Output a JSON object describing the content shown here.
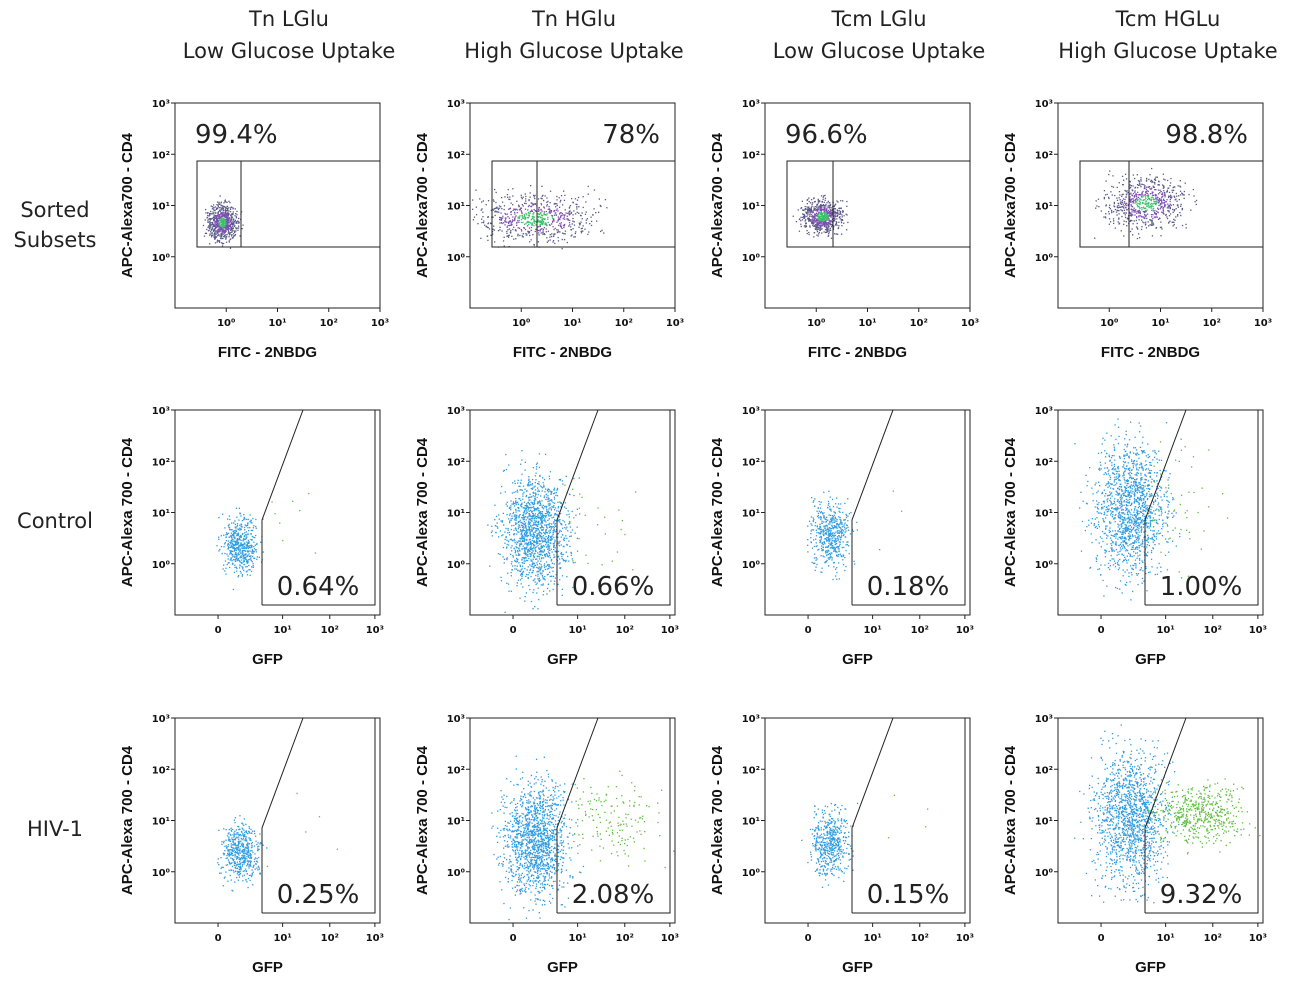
{
  "columns": [
    {
      "title": "Tn LGlu",
      "subtitle": "Low Glucose Uptake"
    },
    {
      "title": "Tn HGlu",
      "subtitle": "High Glucose Uptake"
    },
    {
      "title": "Tcm LGlu",
      "subtitle": "Low Glucose Uptake"
    },
    {
      "title": "Tcm HGLu",
      "subtitle": "High Glucose Uptake"
    }
  ],
  "rows": [
    {
      "label": [
        "Sorted",
        "Subsets"
      ],
      "x_label": "FITC - 2NBDG",
      "y_label": "APC-Alexa700 - CD4",
      "x_ticks": [
        "10⁰",
        "10¹",
        "10²",
        "10³"
      ],
      "y_ticks": [
        "10³",
        "10²",
        "10¹",
        "10⁰"
      ],
      "panels": [
        "99.4%",
        "78%",
        "96.6%",
        "98.8%"
      ]
    },
    {
      "label": [
        "Control"
      ],
      "x_label": "GFP",
      "y_label": "APC-Alexa 700 - CD4",
      "x_ticks": [
        "0",
        "10¹",
        "10²",
        "10³"
      ],
      "y_ticks": [
        "10³",
        "10²",
        "10¹",
        "10⁰"
      ],
      "panels": [
        "0.64%",
        "0.66%",
        "0.18%",
        "1.00%"
      ]
    },
    {
      "label": [
        "HIV-1"
      ],
      "x_label": "GFP",
      "y_label": "APC-Alexa 700 - CD4",
      "x_ticks": [
        "0",
        "10¹",
        "10²",
        "10³"
      ],
      "y_ticks": [
        "10³",
        "10²",
        "10¹",
        "10⁰"
      ],
      "panels": [
        "0.25%",
        "2.08%",
        "0.15%",
        "9.32%"
      ]
    }
  ]
}
